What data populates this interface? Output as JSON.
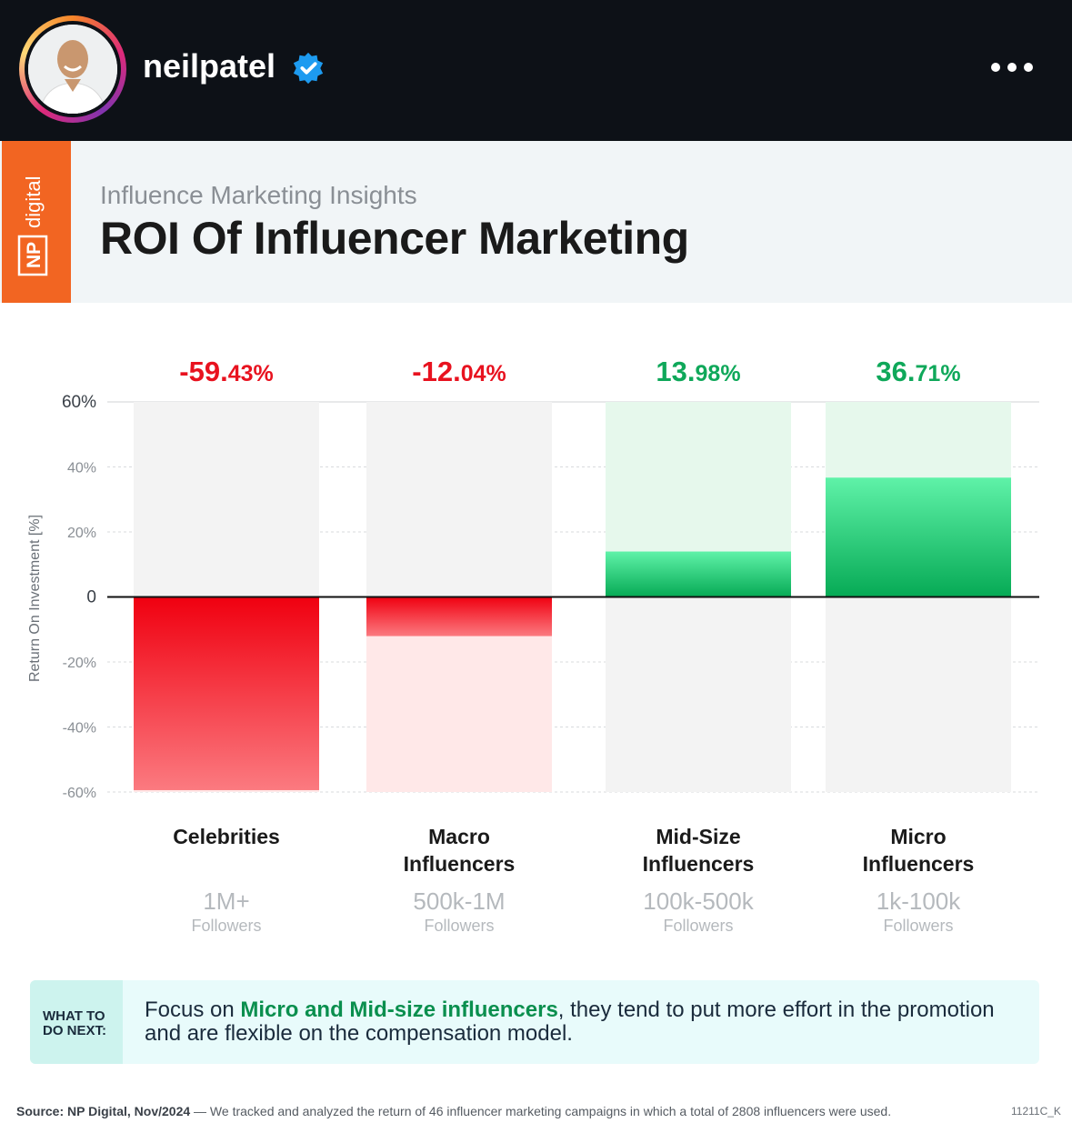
{
  "profile": {
    "username": "neilpatel",
    "verified": true,
    "menu_icon": "more-dots-icon"
  },
  "brand": {
    "logo_text": "NP digital",
    "accent": "#f26522"
  },
  "header": {
    "subtitle": "Influence Marketing Insights",
    "title": "ROI Of Influencer Marketing"
  },
  "chart_data": {
    "type": "bar",
    "ylabel": "Return On Investment [%]",
    "ylim": [
      -60,
      60
    ],
    "yticks": [
      "60%",
      "40%",
      "20%",
      "0",
      "-20%",
      "-40%",
      "-60%"
    ],
    "grid": true,
    "categories": [
      "Celebrities",
      "Macro Influencers",
      "Mid-Size Influencers",
      "Micro Influencers"
    ],
    "category_lines": [
      [
        "Celebrities"
      ],
      [
        "Macro",
        "Influencers"
      ],
      [
        "Mid-Size",
        "Influencers"
      ],
      [
        "Micro",
        "Influencers"
      ]
    ],
    "values": [
      -59.43,
      -12.04,
      13.98,
      36.71
    ],
    "value_labels": [
      {
        "main": "-59.",
        "decimal": "43%"
      },
      {
        "main": "-12.",
        "decimal": "04%"
      },
      {
        "main": "13.",
        "decimal": "98%"
      },
      {
        "main": "36.",
        "decimal": "71%"
      }
    ],
    "followers": [
      "1M+",
      "500k-1M",
      "100k-500k",
      "1k-100k"
    ],
    "followers_label": "Followers",
    "colors": {
      "negative": "#e8121f",
      "positive": "#0fa85a"
    }
  },
  "what_next": {
    "tag_line1": "WHAT TO",
    "tag_line2": "DO NEXT:",
    "text_before": "Focus on ",
    "text_bold": "Micro and Mid-size influencers",
    "text_after": ", they tend to put more effort in the promotion and are flexible on the compensation model."
  },
  "footer": {
    "source_label": "Source:",
    "source_name": "NP Digital, Nov/2024",
    "source_text": " — We tracked and analyzed the return of 46 influencer marketing campaigns in which a total of 2808 influencers were used.",
    "code": "11211C_K"
  }
}
